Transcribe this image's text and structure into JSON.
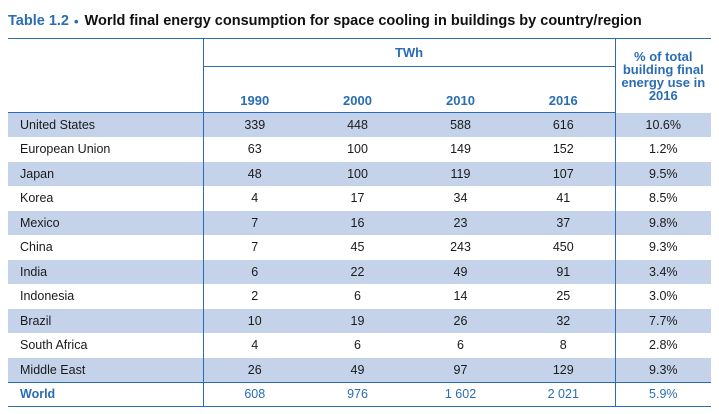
{
  "title": {
    "number": "Table 1.2",
    "bullet": "•",
    "text": "World final energy consumption for space cooling in buildings by country/region"
  },
  "colors": {
    "accent": "#2a6db4",
    "row_shade": "#c5d3ea"
  },
  "table": {
    "units_header": "TWh",
    "pct_header": "% of total building final energy use in 2016",
    "years": [
      "1990",
      "2000",
      "2010",
      "2016"
    ],
    "rows": [
      {
        "name": "United States",
        "values": [
          "339",
          "448",
          "588",
          "616"
        ],
        "pct": "10.6%"
      },
      {
        "name": "European Union",
        "values": [
          "63",
          "100",
          "149",
          "152"
        ],
        "pct": "1.2%"
      },
      {
        "name": "Japan",
        "values": [
          "48",
          "100",
          "119",
          "107"
        ],
        "pct": "9.5%"
      },
      {
        "name": "Korea",
        "values": [
          "4",
          "17",
          "34",
          "41"
        ],
        "pct": "8.5%"
      },
      {
        "name": "Mexico",
        "values": [
          "7",
          "16",
          "23",
          "37"
        ],
        "pct": "9.8%"
      },
      {
        "name": "China",
        "values": [
          "7",
          "45",
          "243",
          "450"
        ],
        "pct": "9.3%"
      },
      {
        "name": "India",
        "values": [
          "6",
          "22",
          "49",
          "91"
        ],
        "pct": "3.4%"
      },
      {
        "name": "Indonesia",
        "values": [
          "2",
          "6",
          "14",
          "25"
        ],
        "pct": "3.0%"
      },
      {
        "name": "Brazil",
        "values": [
          "10",
          "19",
          "26",
          "32"
        ],
        "pct": "7.7%"
      },
      {
        "name": "South Africa",
        "values": [
          "4",
          "6",
          "6",
          "8"
        ],
        "pct": "2.8%"
      },
      {
        "name": "Middle East",
        "values": [
          "26",
          "49",
          "97",
          "129"
        ],
        "pct": "9.3%"
      }
    ],
    "total": {
      "name": "World",
      "values": [
        "608",
        "976",
        "1 602",
        "2 021"
      ],
      "pct": "5.9%"
    }
  }
}
